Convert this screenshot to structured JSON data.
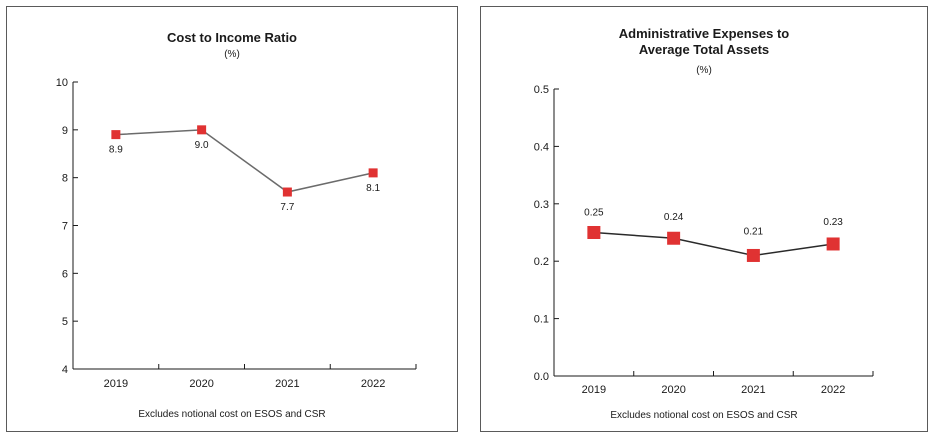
{
  "colors": {
    "marker": "#e03232",
    "line_left": "#6b6b6b",
    "line_right": "#2a2a2a"
  },
  "chart_data": [
    {
      "type": "line",
      "title_lines": [
        "Cost to Income Ratio"
      ],
      "unit": "(%)",
      "categories": [
        "2019",
        "2020",
        "2021",
        "2022"
      ],
      "values": [
        8.9,
        9.0,
        7.7,
        8.1
      ],
      "value_labels": [
        "8.9",
        "9.0",
        "7.7",
        "8.1"
      ],
      "yticks": [
        "4",
        "5",
        "6",
        "7",
        "8",
        "9",
        "10"
      ],
      "ylim": [
        4,
        10
      ],
      "grid": false,
      "legend": "none",
      "footnote": "Excludes notional cost on ESOS and CSR"
    },
    {
      "type": "line",
      "title_lines": [
        "Administrative Expenses to",
        "Average Total Assets"
      ],
      "unit": "(%)",
      "categories": [
        "2019",
        "2020",
        "2021",
        "2022"
      ],
      "values": [
        0.25,
        0.24,
        0.21,
        0.23
      ],
      "value_labels": [
        "0.25",
        "0.24",
        "0.21",
        "0.23"
      ],
      "yticks": [
        "0.0",
        "0.1",
        "0.2",
        "0.3",
        "0.4",
        "0.5"
      ],
      "ylim": [
        0,
        0.5
      ],
      "grid": false,
      "legend": "none",
      "footnote": "Excludes notional cost on ESOS and CSR"
    }
  ]
}
